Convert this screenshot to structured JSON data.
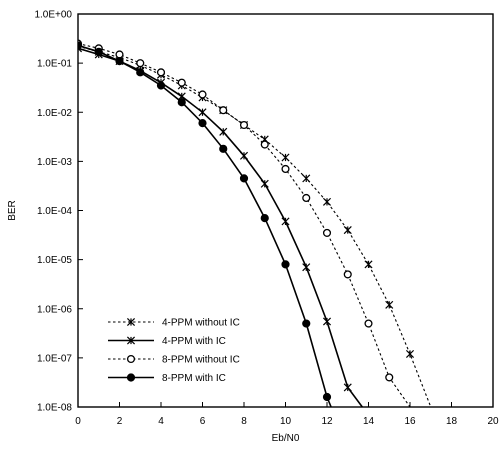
{
  "chart_data": {
    "type": "line",
    "title": "",
    "xlabel": "Eb/N0",
    "ylabel": "BER",
    "xlim": [
      0,
      20
    ],
    "ylim": [
      1e-08,
      1
    ],
    "y_scale": "log",
    "x_ticks": [
      "0",
      "2",
      "4",
      "6",
      "8",
      "10",
      "12",
      "14",
      "16",
      "18",
      "20"
    ],
    "y_ticks": [
      "1.0E+00",
      "1.0E-01",
      "1.0E-02",
      "1.0E-03",
      "1.0E-04",
      "1.0E-05",
      "1.0E-06",
      "1.0E-07",
      "1.0E-08"
    ],
    "grid": false,
    "legend_position": "bottom-left",
    "series": [
      {
        "name": "4-PPM without IC",
        "line_style": "dotted",
        "marker": "asterisk",
        "x": [
          0,
          1,
          2,
          3,
          4,
          5,
          6,
          7,
          8,
          9,
          10,
          11,
          12,
          13,
          14,
          15,
          16,
          17,
          17.6
        ],
        "y": [
          0.22,
          0.17,
          0.13,
          0.09,
          0.058,
          0.035,
          0.02,
          0.011,
          0.0055,
          0.0028,
          0.0012,
          0.00045,
          0.00015,
          4e-05,
          8e-06,
          1.2e-06,
          1.2e-07,
          1e-08,
          1e-08
        ]
      },
      {
        "name": "4-PPM with IC",
        "line_style": "solid",
        "marker": "asterisk",
        "x": [
          0,
          1,
          2,
          3,
          4,
          5,
          6,
          7,
          8,
          9,
          10,
          11,
          12,
          13,
          13.7
        ],
        "y": [
          0.2,
          0.15,
          0.11,
          0.07,
          0.04,
          0.021,
          0.01,
          0.004,
          0.0013,
          0.00035,
          6e-05,
          7e-06,
          5.5e-07,
          2.5e-08,
          1e-08
        ]
      },
      {
        "name": "8-PPM without IC",
        "line_style": "dotted",
        "marker": "circle",
        "x": [
          0,
          1,
          2,
          3,
          4,
          5,
          6,
          7,
          8,
          9,
          10,
          11,
          12,
          13,
          14,
          15,
          16,
          16.5
        ],
        "y": [
          0.25,
          0.2,
          0.15,
          0.1,
          0.065,
          0.04,
          0.023,
          0.011,
          0.0055,
          0.0022,
          0.0007,
          0.00018,
          3.5e-05,
          5e-06,
          5e-07,
          4e-08,
          1e-08,
          1e-08
        ]
      },
      {
        "name": "8-PPM with IC",
        "line_style": "solid",
        "marker": "filled-circle",
        "x": [
          0,
          1,
          2,
          3,
          4,
          5,
          6,
          7,
          8,
          9,
          10,
          11,
          12,
          12.2
        ],
        "y": [
          0.23,
          0.17,
          0.11,
          0.065,
          0.035,
          0.016,
          0.006,
          0.0018,
          0.00045,
          7e-05,
          8e-06,
          5e-07,
          1.6e-08,
          1e-08
        ]
      }
    ]
  }
}
